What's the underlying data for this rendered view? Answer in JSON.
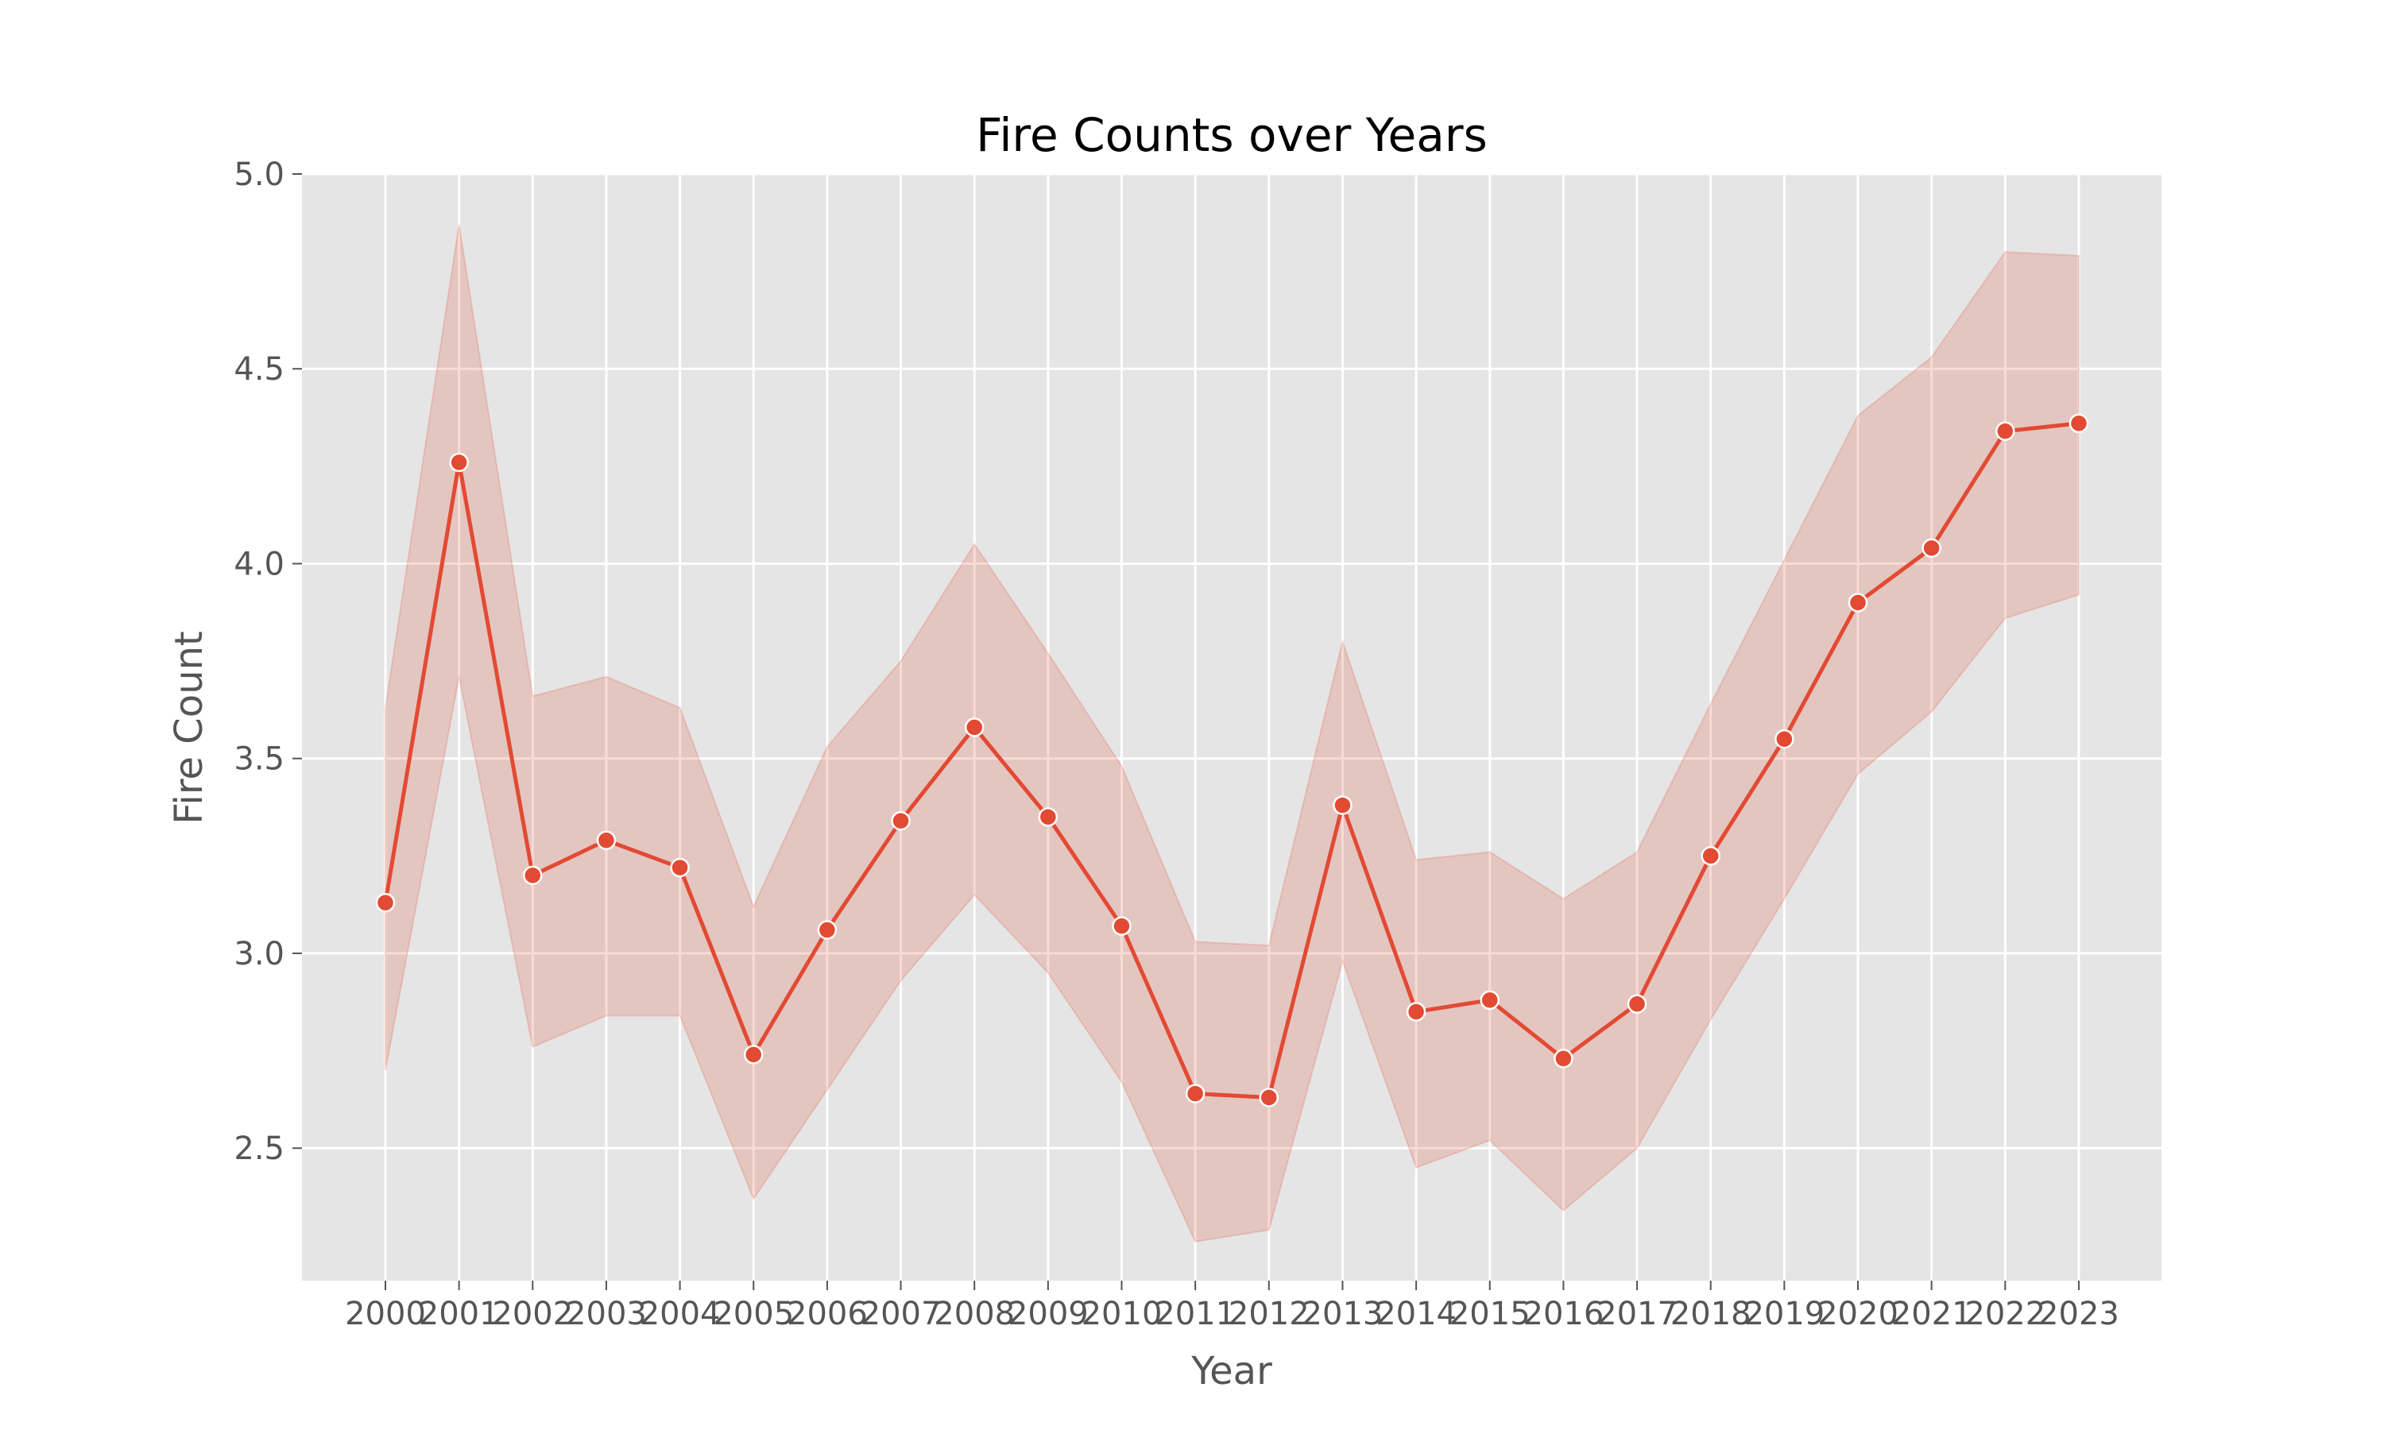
{
  "chart_data": {
    "type": "line",
    "title": "Fire Counts over Years",
    "xlabel": "Year",
    "ylabel": "Fire Count",
    "ylim": [
      2.16,
      5.0
    ],
    "yticks": [
      "2.5",
      "3.0",
      "3.5",
      "4.0",
      "4.5",
      "5.0"
    ],
    "grid": true,
    "colors": {
      "line": "#E24A33",
      "band": "#E24A33",
      "plot_bg": "#E5E5E5",
      "marker_edge": "#ffffff"
    },
    "x": [
      "2000",
      "2001",
      "2002",
      "2003",
      "2004",
      "2005",
      "2006",
      "2007",
      "2008",
      "2009",
      "2010",
      "2011",
      "2012",
      "2013",
      "2014",
      "2015",
      "2016",
      "2017",
      "2018",
      "2019",
      "2020",
      "2021",
      "2022",
      "2023"
    ],
    "series": [
      {
        "values": [
          3.13,
          4.26,
          3.2,
          3.29,
          3.22,
          2.74,
          3.06,
          3.34,
          3.58,
          3.35,
          3.07,
          2.64,
          2.63,
          3.38,
          2.85,
          2.88,
          2.73,
          2.87,
          3.25,
          3.55,
          3.9,
          4.04,
          4.34,
          4.36
        ],
        "ci_lower": [
          2.7,
          3.71,
          2.76,
          2.84,
          2.84,
          2.37,
          2.65,
          2.93,
          3.15,
          2.95,
          2.67,
          2.26,
          2.29,
          2.98,
          2.45,
          2.52,
          2.34,
          2.5,
          2.83,
          3.14,
          3.46,
          3.62,
          3.86,
          3.92
        ],
        "ci_upper": [
          3.63,
          4.87,
          3.66,
          3.71,
          3.63,
          3.12,
          3.53,
          3.75,
          4.05,
          3.77,
          3.48,
          3.03,
          3.02,
          3.8,
          3.24,
          3.26,
          3.14,
          3.26,
          3.64,
          4.01,
          4.38,
          4.53,
          4.8,
          4.79
        ]
      }
    ]
  }
}
